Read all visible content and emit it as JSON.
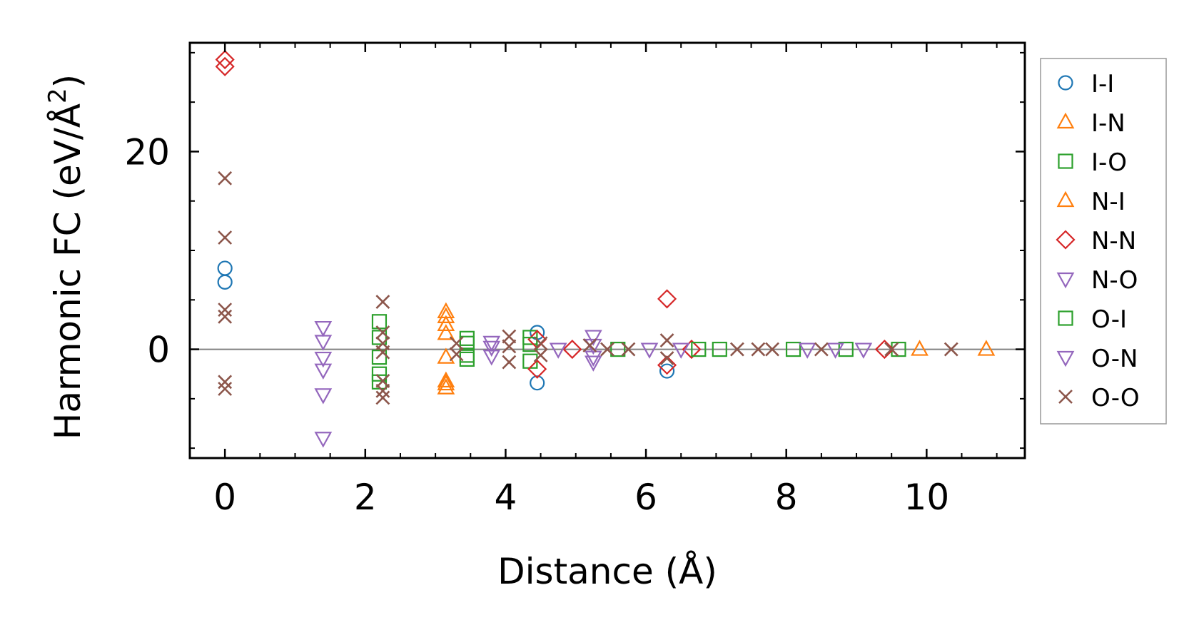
{
  "chart_data": {
    "type": "scatter",
    "title": "",
    "xlabel": "Distance (Å)",
    "ylabel_main": "Harmonic FC (eV/Å",
    "ylabel_sup": "2",
    "ylabel_end": ")",
    "xlim": [
      -0.5,
      11.4
    ],
    "ylim": [
      -11,
      31
    ],
    "xticks": [
      0,
      2,
      4,
      6,
      8,
      10
    ],
    "xtick_labels": [
      "0",
      "2",
      "4",
      "6",
      "8",
      "10"
    ],
    "yticks": [
      0,
      20
    ],
    "ytick_labels": [
      "0",
      "20"
    ],
    "reference_line_y": 0,
    "legend_position": "outside-right",
    "series": [
      {
        "name": "I-I",
        "marker": "circle",
        "color": "#1f77b4",
        "points": [
          [
            0,
            8.2
          ],
          [
            0,
            6.8
          ],
          [
            4.45,
            1.7
          ],
          [
            4.45,
            -3.4
          ],
          [
            6.3,
            -2.2
          ]
        ]
      },
      {
        "name": "I-N",
        "marker": "triangle-up",
        "color": "#ff7f0e",
        "points": [
          [
            3.15,
            3.8
          ],
          [
            3.15,
            2.5
          ],
          [
            3.15,
            -0.8
          ],
          [
            3.15,
            -3.2
          ],
          [
            3.15,
            -3.9
          ],
          [
            9.9,
            0
          ],
          [
            10.85,
            0
          ]
        ]
      },
      {
        "name": "I-O",
        "marker": "square",
        "color": "#2ca02c",
        "points": [
          [
            2.2,
            2.8
          ],
          [
            2.2,
            1.2
          ],
          [
            2.2,
            -0.8
          ],
          [
            2.2,
            -2.5
          ],
          [
            2.2,
            -3.3
          ],
          [
            3.45,
            1.1
          ],
          [
            3.45,
            -0.6
          ],
          [
            4.35,
            1.2
          ],
          [
            4.35,
            -1.2
          ],
          [
            7.05,
            0
          ],
          [
            8.1,
            0
          ],
          [
            8.85,
            0
          ],
          [
            9.6,
            0
          ]
        ]
      },
      {
        "name": "N-I",
        "marker": "triangle-up",
        "color": "#ff7f0e",
        "points": [
          [
            3.15,
            3.3
          ],
          [
            3.15,
            1.6
          ],
          [
            3.15,
            -3.5
          ]
        ]
      },
      {
        "name": "N-N",
        "marker": "diamond",
        "color": "#d62728",
        "points": [
          [
            0,
            29.3
          ],
          [
            0,
            28.6
          ],
          [
            4.45,
            -2.0
          ],
          [
            4.45,
            1.0
          ],
          [
            4.95,
            0
          ],
          [
            6.3,
            5.1
          ],
          [
            6.3,
            -1.6
          ],
          [
            6.65,
            0
          ],
          [
            9.4,
            0
          ]
        ]
      },
      {
        "name": "N-O",
        "marker": "triangle-down",
        "color": "#9467bd",
        "points": [
          [
            1.4,
            2.2
          ],
          [
            1.4,
            0.8
          ],
          [
            1.4,
            -0.9
          ],
          [
            1.4,
            -2.1
          ],
          [
            1.4,
            -4.6
          ],
          [
            1.4,
            -9.0
          ],
          [
            3.8,
            0.7
          ],
          [
            3.8,
            -0.7
          ],
          [
            5.25,
            1.3
          ],
          [
            5.25,
            -1.3
          ],
          [
            4.75,
            0
          ],
          [
            6.05,
            0
          ],
          [
            8.3,
            0
          ],
          [
            9.1,
            0
          ]
        ]
      },
      {
        "name": "O-I",
        "marker": "square",
        "color": "#2ca02c",
        "points": [
          [
            3.45,
            0.6
          ],
          [
            3.45,
            -1.0
          ],
          [
            4.35,
            0.5
          ],
          [
            5.6,
            0
          ],
          [
            6.75,
            0
          ]
        ]
      },
      {
        "name": "O-N",
        "marker": "triangle-down",
        "color": "#9467bd",
        "points": [
          [
            3.8,
            0.2
          ],
          [
            5.25,
            0.4
          ],
          [
            5.25,
            -0.8
          ],
          [
            6.5,
            0
          ],
          [
            8.7,
            0
          ]
        ]
      },
      {
        "name": "O-O",
        "marker": "x",
        "color": "#8c564b",
        "points": [
          [
            0,
            17.3
          ],
          [
            0,
            11.3
          ],
          [
            0,
            4.0
          ],
          [
            0,
            3.3
          ],
          [
            0,
            -3.3
          ],
          [
            0,
            -4.0
          ],
          [
            2.25,
            4.8
          ],
          [
            2.25,
            1.7
          ],
          [
            2.25,
            0.6
          ],
          [
            2.25,
            -0.3
          ],
          [
            2.25,
            -3.2
          ],
          [
            2.25,
            -4.2
          ],
          [
            2.25,
            -4.9
          ],
          [
            3.3,
            0.6
          ],
          [
            3.3,
            -0.5
          ],
          [
            4.05,
            1.3
          ],
          [
            4.05,
            -1.3
          ],
          [
            4.05,
            0.3
          ],
          [
            4.5,
            0.6
          ],
          [
            4.5,
            -0.6
          ],
          [
            5.2,
            0.4
          ],
          [
            5.45,
            0
          ],
          [
            5.75,
            0
          ],
          [
            6.3,
            0.9
          ],
          [
            6.3,
            -0.9
          ],
          [
            7.3,
            0
          ],
          [
            7.6,
            0
          ],
          [
            7.8,
            0
          ],
          [
            8.5,
            0
          ],
          [
            9.5,
            0
          ],
          [
            10.35,
            0
          ]
        ]
      }
    ]
  }
}
